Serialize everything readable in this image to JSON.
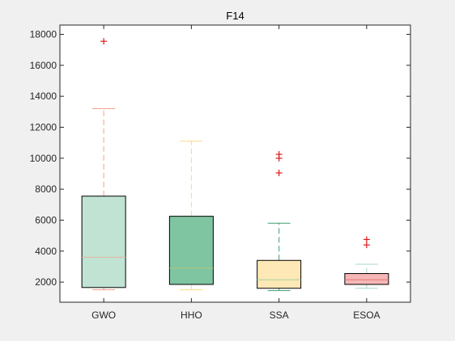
{
  "chart_data": {
    "type": "box",
    "title": "F14",
    "xlabel": "",
    "ylabel": "",
    "ylim": [
      700,
      18600
    ],
    "yticks": [
      2000,
      4000,
      6000,
      8000,
      10000,
      12000,
      14000,
      16000,
      18000
    ],
    "ytick_labels": [
      "2000",
      "4000",
      "6000",
      "8000",
      "10000",
      "12000",
      "14000",
      "16000",
      "18000"
    ],
    "categories": [
      "GWO",
      "HHO",
      "SSA",
      "ESOA"
    ],
    "grid": false,
    "boxes": [
      {
        "name": "GWO",
        "whisker_low": 1500,
        "q1": 1650,
        "median": 3600,
        "q3": 7550,
        "whisker_high": 13200,
        "outliers": [
          17550
        ],
        "fill_color": "#c0e3d4",
        "median_color": "#e8b49e",
        "whisker_color": "#f4a08c",
        "cap_color": "#f4a08c"
      },
      {
        "name": "HHO",
        "whisker_low": 1500,
        "q1": 1850,
        "median": 2900,
        "q3": 6250,
        "whisker_high": 11100,
        "outliers": [],
        "fill_color": "#7fc5a1",
        "median_color": "#b8c27a",
        "whisker_color": "#f8d98a",
        "cap_color": "#f8d98a"
      },
      {
        "name": "SSA",
        "whisker_low": 1450,
        "q1": 1600,
        "median": 2150,
        "q3": 3400,
        "whisker_high": 5800,
        "outliers": [
          9050,
          10000,
          10250
        ],
        "fill_color": "#fde8b6",
        "median_color": "#a8cf9e",
        "whisker_color": "#3e9e6e",
        "cap_color": "#3e9e6e"
      },
      {
        "name": "ESOA",
        "whisker_low": 1600,
        "q1": 1850,
        "median": 2150,
        "q3": 2550,
        "whisker_high": 3150,
        "outliers": [
          4400,
          4750
        ],
        "fill_color": "#f7b7b7",
        "median_color": "#e07878",
        "whisker_color": "#a8d8c0",
        "cap_color": "#a8d8c0"
      }
    ],
    "outlier_color": "#e0191c",
    "box_edge_color": "#000000",
    "axes_background": "#ffffff",
    "figure_background": "#f0f0f0"
  }
}
